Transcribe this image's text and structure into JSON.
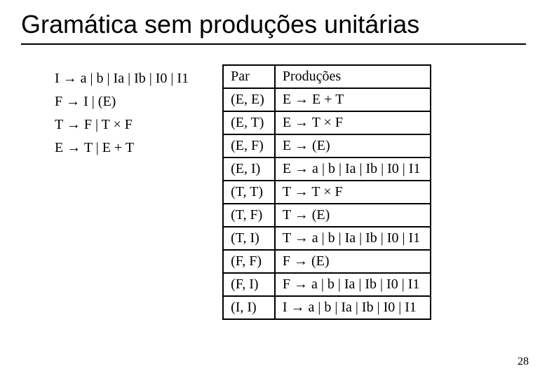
{
  "title": "Gramática sem produções unitárias",
  "grammar_lines": [
    "I → a | b | Ia | Ib | I0 | I1",
    "F → I | (E)",
    "T → F | T × F",
    "E → T | E + T"
  ],
  "table": {
    "headers": [
      "Par",
      "Produções"
    ],
    "rows": [
      [
        "(E, E)",
        "E → E + T"
      ],
      [
        "(E, T)",
        "E → T × F"
      ],
      [
        "(E, F)",
        "E → (E)"
      ],
      [
        "(E, I)",
        "E → a | b | Ia | Ib | I0 | I1"
      ],
      [
        "(T, T)",
        "T → T × F"
      ],
      [
        "(T, F)",
        "T → (E)"
      ],
      [
        "(T, I)",
        "T → a | b | Ia | Ib | I0 | I1"
      ],
      [
        "(F, F)",
        "F → (E)"
      ],
      [
        "(F, I)",
        "F → a | b | Ia | Ib | I0 | I1"
      ],
      [
        "(I, I)",
        "I → a | b | Ia | Ib | I0 | I1"
      ]
    ]
  },
  "page_number": "28"
}
